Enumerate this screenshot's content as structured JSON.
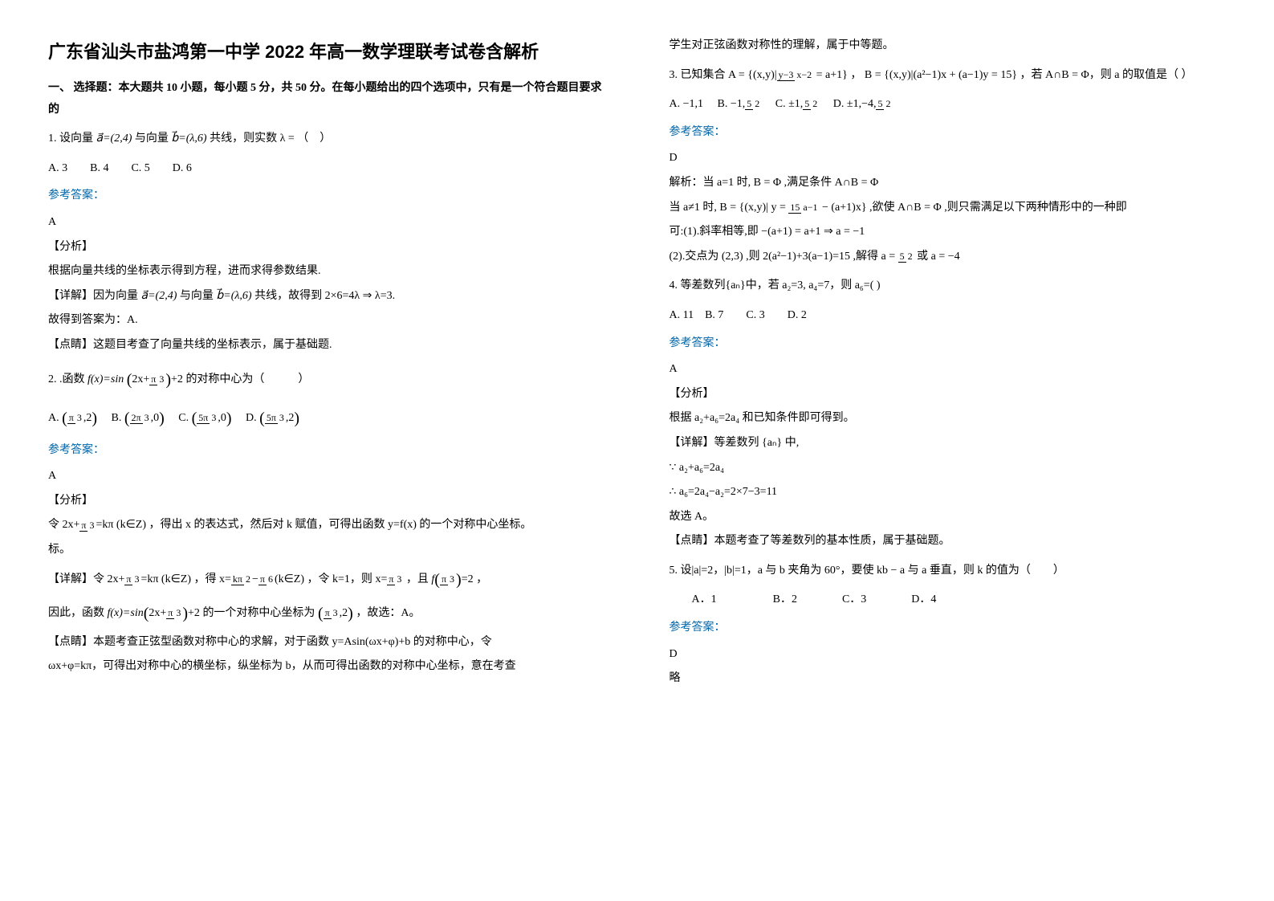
{
  "title": "广东省汕头市盐鸿第一中学 2022 年高一数学理联考试卷含解析",
  "part1_header": "一、 选择题：本大题共 10 小题，每小题 5 分，共 50 分。在每小题给出的四个选项中，只有是一个符合题目要求的",
  "q1": {
    "stem_pre": "1. 设向量",
    "va": "a⃗=(2,4)",
    "mid1": " 与向量",
    "vb": "b⃗=(λ,6)",
    "mid2": " 共线，则实数 λ = （　）",
    "opts": "A. 3　　B. 4　　C. 5　　D. 6",
    "ans_label": "参考答案：",
    "ans": "A",
    "fx_label": "【分析】",
    "fx_text": "根据向量共线的坐标表示得到方程，进而求得参数结果.",
    "xj_label": "【详解】因为向量",
    "xj_mid": " 与向量",
    "xj_tail": " 共线，故得到 2×6=4λ ⇒ λ=3.",
    "line2": "故得到答案为：A.",
    "dj_label": "【点睛】这题目考查了向量共线的坐标表示，属于基础题."
  },
  "q2": {
    "pre": "2. .函数",
    "fx": "f(x)=sin",
    "inparen": "2x+",
    "pi3n": "π",
    "pi3d": "3",
    "plus2": "+2",
    "tail": " 的对称中心为（　　　）",
    "A_pre": "A.",
    "A_n1": "π",
    "A_d1": "3",
    "A_sep": ",2",
    "B_pre": "B.",
    "B_n": "2π",
    "B_d": "3",
    "B_sep": ",0",
    "C_pre": "C.",
    "C_n": "5π",
    "C_d": "3",
    "C_sep": ",0",
    "D_pre": "D.",
    "D_n": "5π",
    "D_d": "3",
    "D_sep": ",2",
    "ans_label": "参考答案：",
    "ans": "A",
    "fx_label": "【分析】",
    "fx_text_pre": "令",
    "fx_eq_l": "2x+",
    "fx_eqf_n": "π",
    "fx_eqf_d": "3",
    "fx_eq_r": "=kπ (k∈Z)",
    "fx_text_mid": "，得出 x 的表达式，然后对 k 赋值，可得出函数 y=f(x) 的一个对称中心坐标。",
    "xj_label": "【详解】令",
    "xj1_l": "2x+",
    "xj1_n": "π",
    "xj1_d": "3",
    "xj1_r": "=kπ (k∈Z)",
    "xj_mid1": "，得",
    "xj2_l": "x=",
    "xj2a_n": "kπ",
    "xj2a_d": "2",
    "xj2_minus": "−",
    "xj2b_n": "π",
    "xj2b_d": "6",
    "xj2_r": "(k∈Z)",
    "xj_mid2": "，令 k=1，则",
    "xj3_l": "x=",
    "xj3_n": "π",
    "xj3_d": "3",
    "xj_mid3": "，且",
    "xj4_l": "f",
    "xj4_pn": "π",
    "xj4_pd": "3",
    "xj4_r": "=2",
    "xj_tail": "，",
    "line3_pre": "因此，函数",
    "line3_fx": "f(x)=sin",
    "line3_in": "2x+",
    "line3_n": "π",
    "line3_d": "3",
    "line3_plus": "+2",
    "line3_mid": " 的一个对称中心坐标为",
    "line3_pn": "π",
    "line3_pd": "3",
    "line3_sep": ",2",
    "line3_end": "，故选：A。",
    "dj_label": "【点睛】本题考查正弦型函数对称中心的求解，对于函数 y=Asin(ωx+φ)+b 的对称中心，令",
    "dj2": "ωx+φ=kπ，可得出对称中心的横坐标，纵坐标为 b，从而可得出函数的对称中心坐标，意在考查"
  },
  "col2": {
    "top": "学生对正弦函数对称性的理解，属于中等题。",
    "q3_pre": "3. 已知集合",
    "q3_A_pre": "A = {(x,y)|",
    "q3_A_n": "y−3",
    "q3_A_d": "x−2",
    "q3_A_post": " = a+1}",
    "q3_mid1": "，",
    "q3_B": "B = {(x,y)|(a²−1)x + (a−1)y = 15}",
    "q3_mid2": "，若 A∩B = Φ，则 a 的取值是（  ）",
    "q3_optA": "A. −1,1",
    "q3_optB_pre": "B. −1,",
    "q3_optB_n": "5",
    "q3_optB_d": "2",
    "q3_optC_pre": "C. ±1,",
    "q3_optC_n": "5",
    "q3_optC_d": "2",
    "q3_optD_pre": "D. ±1,−4,",
    "q3_optD_n": "5",
    "q3_optD_d": "2",
    "q3_ans_label": "参考答案：",
    "q3_ans": "D",
    "q3_jx_pre": "解析：当 a=1 时, B = Φ ,满足条件 A∩B = Φ",
    "q3_line2_pre": "当 a≠1 时,",
    "q3_B2_pre": "B = {(x,y)| y = ",
    "q3_B2_n": "15",
    "q3_B2_d": "a−1",
    "q3_B2_post": " − (a+1)x}",
    "q3_line2_mid": ",欲使 A∩B = Φ ,则只需满足以下两种情形中的一种即",
    "q3_line3": "可:(1).斜率相等,即 −(a+1) = a+1 ⇒ a = −1",
    "q3_line4_pre": "(2).交点为 (2,3) ,则 2(a²−1)+3(a−1)=15 ,解得",
    "q3_line4_a_pre": "a = ",
    "q3_line4_n": "5",
    "q3_line4_d": "2",
    "q3_line4_post": " 或 a = −4",
    "q4_stem": "4. 等差数列{aₙ}中，若 a₂=3, a₄=7，则 a₆=(  )",
    "q4_opts": "A. 11　B. 7　　C. 3　　D. 2",
    "q4_ans_label": "参考答案：",
    "q4_ans": "A",
    "q4_fx_label": "【分析】",
    "q4_fx": "根据 a₂+a₆=2a₄ 和已知条件即可得到。",
    "q4_xj_label": "【详解】等差数列 {aₙ} 中,",
    "q4_l1": "∵ a₂+a₆=2a₄",
    "q4_l2": "∴ a₆=2a₄−a₂=2×7−3=11",
    "q4_l3": "故选 A。",
    "q4_dj": "【点睛】本题考查了等差数列的基本性质，属于基础题。",
    "q5_stem": "5. 设|a|=2，|b|=1，a 与 b 夹角为 60°，要使 kb − a 与 a 垂直，则 k 的值为（　　）",
    "q5_opts": "A．1　　　　　B．2　　　　C．3　　　　D．4",
    "q5_ans_label": "参考答案：",
    "q5_ans": "D",
    "q5_end": "略"
  }
}
